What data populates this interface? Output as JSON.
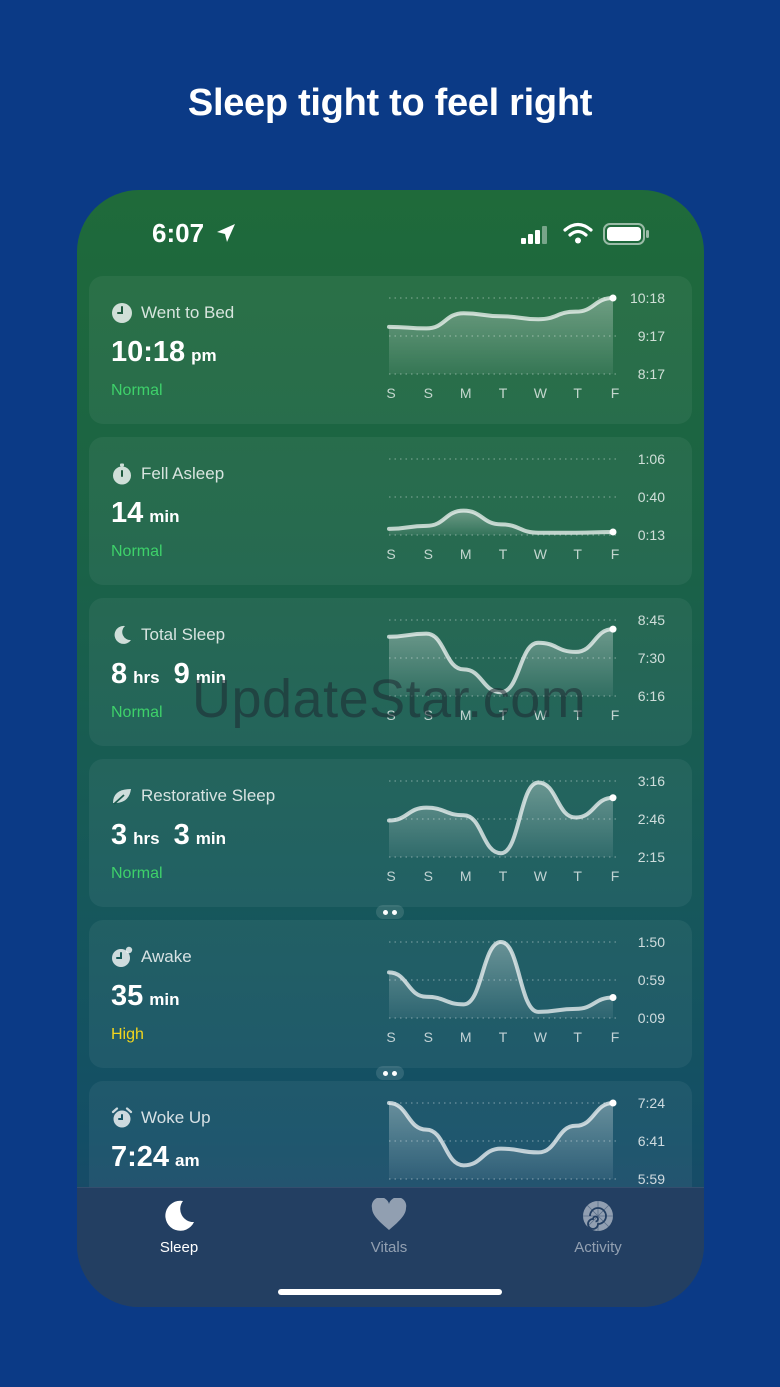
{
  "headline": "Sleep tight to feel right",
  "status_bar": {
    "time": "6:07",
    "icons": [
      "location-arrow-icon",
      "signal-bars-icon",
      "wifi-icon",
      "battery-icon"
    ]
  },
  "colors": {
    "normal": "#3ed16a",
    "high": "#f2d51d",
    "background": "#0b3a86"
  },
  "days": [
    "S",
    "S",
    "M",
    "T",
    "W",
    "T",
    "F"
  ],
  "cards": [
    {
      "title": "Went to Bed",
      "icon": "clock-icon",
      "value": [
        {
          "num": "10:18",
          "unit": "pm"
        }
      ],
      "status": "Normal",
      "status_level": "normal",
      "y_labels": [
        "10:18",
        "9:17",
        "8:17"
      ],
      "values": [
        0.62,
        0.6,
        0.8,
        0.76,
        0.72,
        0.82,
        1.0
      ]
    },
    {
      "title": "Fell Asleep",
      "icon": "stopwatch-icon",
      "value": [
        {
          "num": "14",
          "unit": "min"
        }
      ],
      "status": "Normal",
      "status_level": "normal",
      "y_labels": [
        "1:06",
        "0:40",
        "0:13"
      ],
      "values": [
        0.08,
        0.12,
        0.32,
        0.14,
        0.03,
        0.03,
        0.04
      ]
    },
    {
      "title": "Total Sleep",
      "icon": "moon-icon",
      "value": [
        {
          "num": "8",
          "unit": "hrs"
        },
        {
          "num": "9",
          "unit": "min"
        }
      ],
      "status": "Normal",
      "status_level": "normal",
      "y_labels": [
        "8:45",
        "7:30",
        "6:16"
      ],
      "values": [
        0.78,
        0.82,
        0.35,
        0.05,
        0.7,
        0.58,
        0.88
      ]
    },
    {
      "title": "Restorative Sleep",
      "icon": "leaf-icon",
      "value": [
        {
          "num": "3",
          "unit": "hrs"
        },
        {
          "num": "3",
          "unit": "min"
        }
      ],
      "status": "Normal",
      "status_level": "normal",
      "y_labels": [
        "3:16",
        "2:46",
        "2:15"
      ],
      "values": [
        0.48,
        0.65,
        0.55,
        0.05,
        0.98,
        0.52,
        0.78
      ]
    },
    {
      "title": "Awake",
      "icon": "zzz-clock-icon",
      "value": [
        {
          "num": "35",
          "unit": "min"
        }
      ],
      "status": "High",
      "status_level": "high",
      "y_labels": [
        "1:50",
        "0:59",
        "0:09"
      ],
      "values": [
        0.6,
        0.28,
        0.18,
        1.0,
        0.08,
        0.12,
        0.27
      ]
    },
    {
      "title": "Woke Up",
      "icon": "alarm-clock-icon",
      "value": [
        {
          "num": "7:24",
          "unit": "am"
        }
      ],
      "status": "",
      "status_level": "normal",
      "y_labels": [
        "7:24",
        "6:41",
        "5:59"
      ],
      "values": [
        1.0,
        0.65,
        0.18,
        0.4,
        0.35,
        0.7,
        1.0
      ]
    }
  ],
  "tabs": [
    {
      "label": "Sleep",
      "icon": "moon-icon",
      "active": true
    },
    {
      "label": "Vitals",
      "icon": "heart-icon",
      "active": false
    },
    {
      "label": "Activity",
      "icon": "nautilus-shell-icon",
      "active": false
    }
  ],
  "watermark": "UpdateStar.com"
}
